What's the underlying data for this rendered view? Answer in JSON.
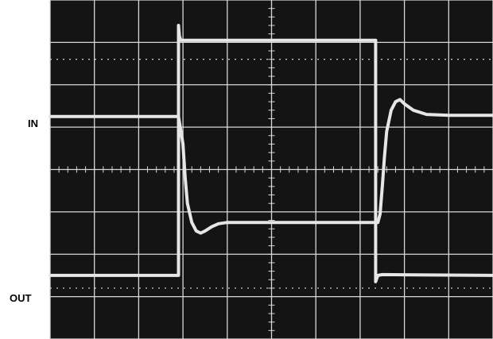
{
  "labels": {
    "in": "IN",
    "out": "OUT"
  },
  "colors": {
    "screen": "#141414",
    "grid": "#d8d8d8",
    "trace": "#e6e6e6",
    "page": "#ffffff"
  },
  "chart_data": {
    "type": "line",
    "grid": true,
    "divisions": {
      "x": 10,
      "y": 8
    },
    "xlim": [
      0,
      10
    ],
    "ylim": [
      0,
      8
    ],
    "series": [
      {
        "name": "IN",
        "x": [
          0,
          2.9,
          2.9,
          2.92,
          2.95,
          7.35,
          7.35,
          7.4,
          7.5,
          10
        ],
        "y": [
          1.5,
          1.5,
          7.4,
          7.15,
          7.05,
          7.05,
          1.35,
          1.5,
          1.52,
          1.5
        ]
      },
      {
        "name": "OUT",
        "x": [
          0,
          2.9,
          3.0,
          3.05,
          3.1,
          3.2,
          3.3,
          3.4,
          3.5,
          3.65,
          3.8,
          4.0,
          4.3,
          4.8,
          7.4,
          7.45,
          7.5,
          7.55,
          7.6,
          7.7,
          7.8,
          7.9,
          8.0,
          8.2,
          8.5,
          9.0,
          10
        ],
        "y": [
          5.25,
          5.25,
          4.6,
          3.8,
          3.2,
          2.75,
          2.55,
          2.5,
          2.55,
          2.65,
          2.72,
          2.75,
          2.75,
          2.75,
          2.75,
          2.95,
          3.6,
          4.3,
          4.9,
          5.4,
          5.6,
          5.65,
          5.55,
          5.4,
          5.3,
          5.28,
          5.28
        ]
      }
    ]
  }
}
